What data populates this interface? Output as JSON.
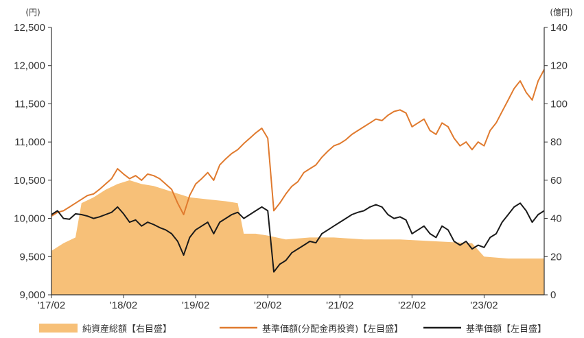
{
  "chart_data": {
    "type": "line",
    "left_axis": {
      "unit_label": "(円)",
      "ylim": [
        9000,
        12500
      ],
      "ticks": [
        9000,
        9500,
        10000,
        10500,
        11000,
        11500,
        12000,
        12500
      ],
      "tick_labels": [
        "9,000",
        "9,500",
        "10,000",
        "10,500",
        "11,000",
        "11,500",
        "12,000",
        "12,500"
      ]
    },
    "right_axis": {
      "unit_label": "(億円)",
      "ylim": [
        0,
        140
      ],
      "ticks": [
        0,
        20,
        40,
        60,
        80,
        100,
        120,
        140
      ],
      "tick_labels": [
        "0",
        "20",
        "40",
        "60",
        "80",
        "100",
        "120",
        "140"
      ]
    },
    "x_axis": {
      "start": "2017-02",
      "end": "2023-12",
      "tick_dates": [
        "2017-02",
        "2018-02",
        "2019-02",
        "2020-02",
        "2021-02",
        "2022-02",
        "2023-02"
      ],
      "tick_labels": [
        "'17/02",
        "'18/02",
        "'19/02",
        "'20/02",
        "'21/02",
        "'22/02",
        "'23/02"
      ]
    },
    "series": [
      {
        "name": "純資産総額【右目盛】",
        "kind": "area",
        "axis": "right",
        "color": "#f7c078",
        "points": [
          [
            "2017-02",
            23
          ],
          [
            "2017-04",
            27
          ],
          [
            "2017-06",
            30
          ],
          [
            "2017-07",
            48
          ],
          [
            "2017-09",
            51
          ],
          [
            "2017-11",
            55
          ],
          [
            "2018-01",
            58
          ],
          [
            "2018-03",
            60
          ],
          [
            "2018-05",
            58
          ],
          [
            "2018-07",
            57
          ],
          [
            "2018-09",
            55
          ],
          [
            "2018-11",
            53
          ],
          [
            "2019-01",
            51
          ],
          [
            "2019-04",
            50
          ],
          [
            "2019-07",
            49
          ],
          [
            "2019-09",
            48
          ],
          [
            "2019-10",
            32
          ],
          [
            "2019-12",
            32
          ],
          [
            "2020-02",
            31
          ],
          [
            "2020-05",
            29
          ],
          [
            "2020-09",
            30
          ],
          [
            "2021-01",
            30
          ],
          [
            "2021-06",
            29
          ],
          [
            "2021-12",
            29
          ],
          [
            "2022-06",
            28
          ],
          [
            "2022-12",
            27
          ],
          [
            "2023-02",
            20
          ],
          [
            "2023-06",
            19
          ],
          [
            "2023-12",
            19
          ]
        ]
      },
      {
        "name": "基準価額(分配金再投資)【左目盛】",
        "kind": "line",
        "axis": "left",
        "color": "#e07a2e",
        "points": [
          [
            "2017-02",
            10030
          ],
          [
            "2017-03",
            10080
          ],
          [
            "2017-04",
            10100
          ],
          [
            "2017-05",
            10150
          ],
          [
            "2017-06",
            10200
          ],
          [
            "2017-07",
            10250
          ],
          [
            "2017-08",
            10300
          ],
          [
            "2017-09",
            10320
          ],
          [
            "2017-10",
            10380
          ],
          [
            "2017-11",
            10450
          ],
          [
            "2017-12",
            10520
          ],
          [
            "2018-01",
            10650
          ],
          [
            "2018-02",
            10580
          ],
          [
            "2018-03",
            10520
          ],
          [
            "2018-04",
            10560
          ],
          [
            "2018-05",
            10500
          ],
          [
            "2018-06",
            10580
          ],
          [
            "2018-07",
            10560
          ],
          [
            "2018-08",
            10520
          ],
          [
            "2018-09",
            10450
          ],
          [
            "2018-10",
            10380
          ],
          [
            "2018-11",
            10200
          ],
          [
            "2018-12",
            10050
          ],
          [
            "2019-01",
            10300
          ],
          [
            "2019-02",
            10450
          ],
          [
            "2019-03",
            10520
          ],
          [
            "2019-04",
            10600
          ],
          [
            "2019-05",
            10500
          ],
          [
            "2019-06",
            10700
          ],
          [
            "2019-07",
            10780
          ],
          [
            "2019-08",
            10850
          ],
          [
            "2019-09",
            10900
          ],
          [
            "2019-10",
            10980
          ],
          [
            "2019-11",
            11050
          ],
          [
            "2019-12",
            11120
          ],
          [
            "2020-01",
            11180
          ],
          [
            "2020-02",
            11050
          ],
          [
            "2020-03",
            10100
          ],
          [
            "2020-04",
            10200
          ],
          [
            "2020-05",
            10320
          ],
          [
            "2020-06",
            10420
          ],
          [
            "2020-07",
            10480
          ],
          [
            "2020-08",
            10600
          ],
          [
            "2020-09",
            10650
          ],
          [
            "2020-10",
            10700
          ],
          [
            "2020-11",
            10800
          ],
          [
            "2020-12",
            10880
          ],
          [
            "2021-01",
            10950
          ],
          [
            "2021-02",
            10980
          ],
          [
            "2021-03",
            11030
          ],
          [
            "2021-04",
            11100
          ],
          [
            "2021-05",
            11150
          ],
          [
            "2021-06",
            11200
          ],
          [
            "2021-07",
            11250
          ],
          [
            "2021-08",
            11300
          ],
          [
            "2021-09",
            11280
          ],
          [
            "2021-10",
            11350
          ],
          [
            "2021-11",
            11400
          ],
          [
            "2021-12",
            11420
          ],
          [
            "2022-01",
            11380
          ],
          [
            "2022-02",
            11200
          ],
          [
            "2022-03",
            11250
          ],
          [
            "2022-04",
            11300
          ],
          [
            "2022-05",
            11150
          ],
          [
            "2022-06",
            11100
          ],
          [
            "2022-07",
            11250
          ],
          [
            "2022-08",
            11200
          ],
          [
            "2022-09",
            11050
          ],
          [
            "2022-10",
            10950
          ],
          [
            "2022-11",
            11000
          ],
          [
            "2022-12",
            10900
          ],
          [
            "2023-01",
            11000
          ],
          [
            "2023-02",
            10950
          ],
          [
            "2023-03",
            11150
          ],
          [
            "2023-04",
            11250
          ],
          [
            "2023-05",
            11400
          ],
          [
            "2023-06",
            11550
          ],
          [
            "2023-07",
            11700
          ],
          [
            "2023-08",
            11800
          ],
          [
            "2023-09",
            11650
          ],
          [
            "2023-10",
            11550
          ],
          [
            "2023-11",
            11800
          ],
          [
            "2023-12",
            11950
          ]
        ]
      },
      {
        "name": "基準価額【左目盛】",
        "kind": "line",
        "axis": "left",
        "color": "#1a1a1a",
        "points": [
          [
            "2017-02",
            10050
          ],
          [
            "2017-03",
            10100
          ],
          [
            "2017-04",
            10000
          ],
          [
            "2017-05",
            9990
          ],
          [
            "2017-06",
            10060
          ],
          [
            "2017-07",
            10050
          ],
          [
            "2017-08",
            10030
          ],
          [
            "2017-09",
            10000
          ],
          [
            "2017-10",
            10020
          ],
          [
            "2017-11",
            10050
          ],
          [
            "2017-12",
            10080
          ],
          [
            "2018-01",
            10150
          ],
          [
            "2018-02",
            10060
          ],
          [
            "2018-03",
            9950
          ],
          [
            "2018-04",
            9980
          ],
          [
            "2018-05",
            9900
          ],
          [
            "2018-06",
            9950
          ],
          [
            "2018-07",
            9920
          ],
          [
            "2018-08",
            9880
          ],
          [
            "2018-09",
            9850
          ],
          [
            "2018-10",
            9800
          ],
          [
            "2018-11",
            9700
          ],
          [
            "2018-12",
            9520
          ],
          [
            "2019-01",
            9750
          ],
          [
            "2019-02",
            9850
          ],
          [
            "2019-03",
            9900
          ],
          [
            "2019-04",
            9950
          ],
          [
            "2019-05",
            9800
          ],
          [
            "2019-06",
            9950
          ],
          [
            "2019-07",
            10000
          ],
          [
            "2019-08",
            10050
          ],
          [
            "2019-09",
            10080
          ],
          [
            "2019-10",
            10000
          ],
          [
            "2019-11",
            10050
          ],
          [
            "2019-12",
            10100
          ],
          [
            "2020-01",
            10150
          ],
          [
            "2020-02",
            10100
          ],
          [
            "2020-03",
            9300
          ],
          [
            "2020-04",
            9400
          ],
          [
            "2020-05",
            9450
          ],
          [
            "2020-06",
            9550
          ],
          [
            "2020-07",
            9600
          ],
          [
            "2020-08",
            9650
          ],
          [
            "2020-09",
            9700
          ],
          [
            "2020-10",
            9680
          ],
          [
            "2020-11",
            9800
          ],
          [
            "2020-12",
            9850
          ],
          [
            "2021-01",
            9900
          ],
          [
            "2021-02",
            9950
          ],
          [
            "2021-03",
            10000
          ],
          [
            "2021-04",
            10050
          ],
          [
            "2021-05",
            10080
          ],
          [
            "2021-06",
            10100
          ],
          [
            "2021-07",
            10150
          ],
          [
            "2021-08",
            10180
          ],
          [
            "2021-09",
            10150
          ],
          [
            "2021-10",
            10050
          ],
          [
            "2021-11",
            10000
          ],
          [
            "2021-12",
            10020
          ],
          [
            "2022-01",
            9980
          ],
          [
            "2022-02",
            9800
          ],
          [
            "2022-03",
            9850
          ],
          [
            "2022-04",
            9900
          ],
          [
            "2022-05",
            9800
          ],
          [
            "2022-06",
            9750
          ],
          [
            "2022-07",
            9900
          ],
          [
            "2022-08",
            9850
          ],
          [
            "2022-09",
            9700
          ],
          [
            "2022-10",
            9650
          ],
          [
            "2022-11",
            9700
          ],
          [
            "2022-12",
            9600
          ],
          [
            "2023-01",
            9650
          ],
          [
            "2023-02",
            9620
          ],
          [
            "2023-03",
            9750
          ],
          [
            "2023-04",
            9800
          ],
          [
            "2023-05",
            9950
          ],
          [
            "2023-06",
            10050
          ],
          [
            "2023-07",
            10150
          ],
          [
            "2023-08",
            10200
          ],
          [
            "2023-09",
            10100
          ],
          [
            "2023-10",
            9950
          ],
          [
            "2023-11",
            10050
          ],
          [
            "2023-12",
            10100
          ]
        ]
      }
    ],
    "legend_position": "bottom",
    "grid": false
  }
}
